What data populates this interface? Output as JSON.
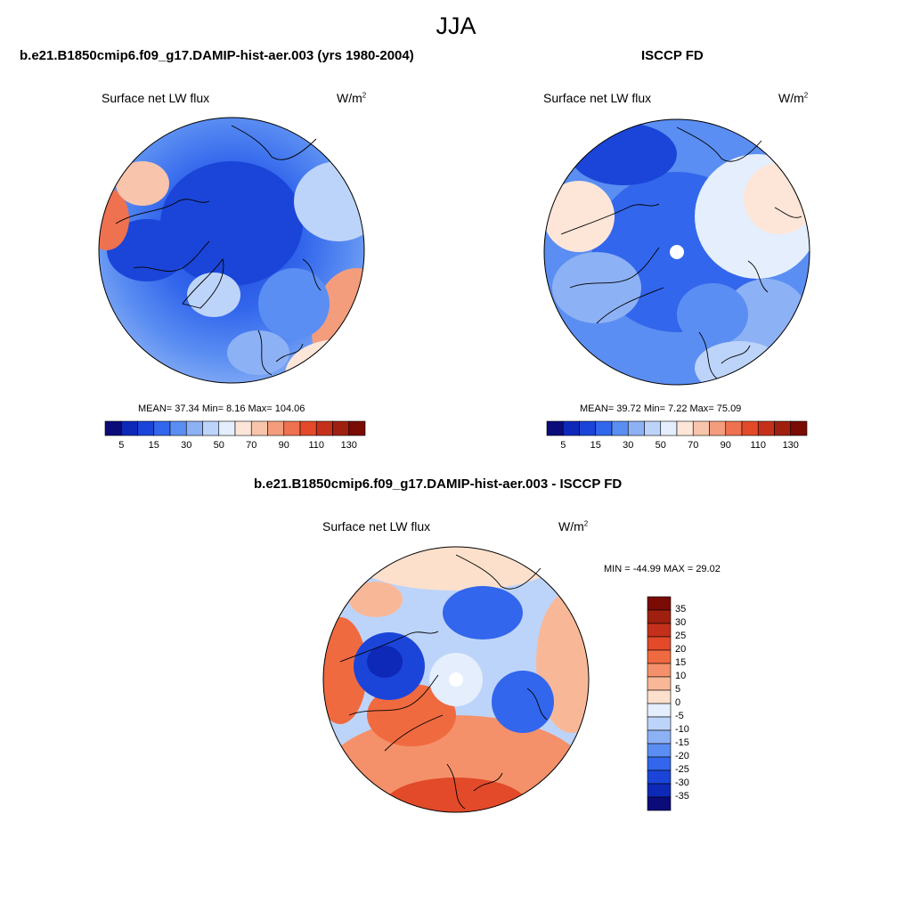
{
  "figure": {
    "title": "JJA",
    "panels": [
      {
        "id": "model",
        "title": "b.e21.B1850cmip6.f09_g17.DAMIP-hist-aer.003 (yrs 1980-2004)",
        "left_label": "Surface net LW flux",
        "right_label": "W/m",
        "units_sup": "2",
        "stats": "MEAN=  37.34  Min=   8.16  Max= 104.06"
      },
      {
        "id": "obs",
        "title": "ISCCP FD",
        "left_label": "Surface net LW flux",
        "right_label": "W/m",
        "units_sup": "2",
        "stats": "MEAN=  39.72  Min=   7.22  Max=  75.09"
      },
      {
        "id": "diff",
        "title": "b.e21.B1850cmip6.f09_g17.DAMIP-hist-aer.003 - ISCCP FD",
        "left_label": "Surface net LW flux",
        "right_label": "W/m",
        "units_sup": "2",
        "stats": "MIN = -44.99 MAX =  29.02"
      }
    ]
  },
  "chart_data": [
    {
      "type": "heatmap",
      "projection": "north polar stereographic",
      "title": "b.e21.B1850cmip6.f09_g17.DAMIP-hist-aer.003 (yrs 1980-2004)",
      "variable": "Surface net LW flux",
      "units": "W/m2",
      "mean": 37.34,
      "min": 8.16,
      "max": 104.06,
      "colorbar": {
        "orientation": "horizontal",
        "tick_labels": [
          "5",
          "15",
          "30",
          "50",
          "70",
          "90",
          "110",
          "130"
        ],
        "colors": [
          "#0b0b7a",
          "#0e28b8",
          "#1b45d8",
          "#3266ec",
          "#5b8ef2",
          "#8db1f5",
          "#bdd4fa",
          "#e4eefd",
          "#fde6d8",
          "#f8c4ab",
          "#f49d7c",
          "#ee7150",
          "#e24a2a",
          "#c5301a",
          "#a0200f",
          "#7a0c05"
        ]
      }
    },
    {
      "type": "heatmap",
      "projection": "north polar stereographic",
      "title": "ISCCP FD",
      "variable": "Surface net LW flux",
      "units": "W/m2",
      "mean": 39.72,
      "min": 7.22,
      "max": 75.09,
      "colorbar": {
        "orientation": "horizontal",
        "tick_labels": [
          "5",
          "15",
          "30",
          "50",
          "70",
          "90",
          "110",
          "130"
        ],
        "colors": [
          "#0b0b7a",
          "#0e28b8",
          "#1b45d8",
          "#3266ec",
          "#5b8ef2",
          "#8db1f5",
          "#bdd4fa",
          "#e4eefd",
          "#fde6d8",
          "#f8c4ab",
          "#f49d7c",
          "#ee7150",
          "#e24a2a",
          "#c5301a",
          "#a0200f",
          "#7a0c05"
        ]
      }
    },
    {
      "type": "heatmap",
      "projection": "north polar stereographic",
      "title": "b.e21.B1850cmip6.f09_g17.DAMIP-hist-aer.003 - ISCCP FD",
      "variable": "Surface net LW flux",
      "units": "W/m2",
      "min": -44.99,
      "max": 29.02,
      "colorbar": {
        "orientation": "vertical",
        "tick_labels": [
          "35",
          "30",
          "25",
          "20",
          "15",
          "10",
          "5",
          "0",
          "-5",
          "-10",
          "-15",
          "-20",
          "-25",
          "-30",
          "-35"
        ],
        "colors": [
          "#7a0c05",
          "#a0200f",
          "#c5301a",
          "#e24a2a",
          "#f06a40",
          "#f4916a",
          "#f8b898",
          "#fde0cc",
          "#e4eefd",
          "#bdd4fa",
          "#8db1f5",
          "#5b8ef2",
          "#3266ec",
          "#1b45d8",
          "#0e28b8",
          "#0b0b7a"
        ]
      }
    }
  ]
}
